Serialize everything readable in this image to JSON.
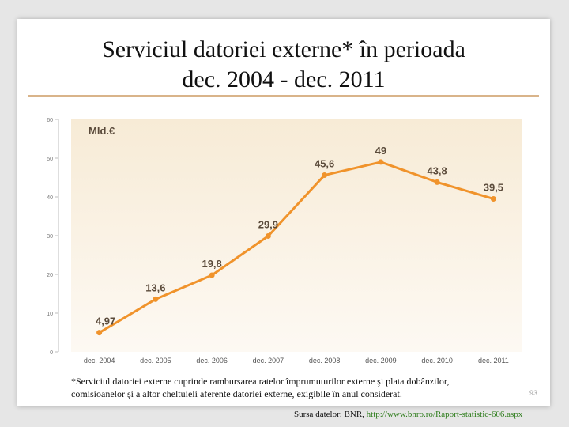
{
  "slide": {
    "title_line1": "Serviciul datoriei externe* în perioada",
    "title_line2": "dec. 2004 - dec. 2011",
    "footnote_line1": "*Serviciul datoriei externe cuprinde rambursarea ratelor împrumuturilor externe şi plata dobânzilor,",
    "footnote_line2": "comisioanelor şi a altor cheltuieli aferente  datoriei externe, exigibile în anul considerat.",
    "page_number": "93",
    "source_prefix": "Sursa datelor: BNR, ",
    "source_link": "http://www.bnro.ro/Raport-statistic-606.aspx"
  },
  "colors": {
    "line": "#f0932b",
    "plot_background_top": "#f7ebd6",
    "plot_background_bottom": "#fdf9f3",
    "link": "#2e7d1c"
  },
  "chart_data": {
    "type": "line",
    "unit_label": "Mld.€",
    "categories": [
      "dec. 2004",
      "dec. 2005",
      "dec. 2006",
      "dec. 2007",
      "dec. 2008",
      "dec. 2009",
      "dec. 2010",
      "dec. 2011"
    ],
    "values": [
      4.97,
      13.6,
      19.8,
      29.9,
      45.6,
      49,
      43.8,
      39.5
    ],
    "data_labels": [
      "4,97",
      "13,6",
      "19,8",
      "29,9",
      "45,6",
      "49",
      "43,8",
      "39,5"
    ],
    "yticks": [
      "0",
      "10",
      "20",
      "30",
      "40",
      "50",
      "60"
    ],
    "ylim": [
      0,
      60
    ],
    "grid": false
  }
}
